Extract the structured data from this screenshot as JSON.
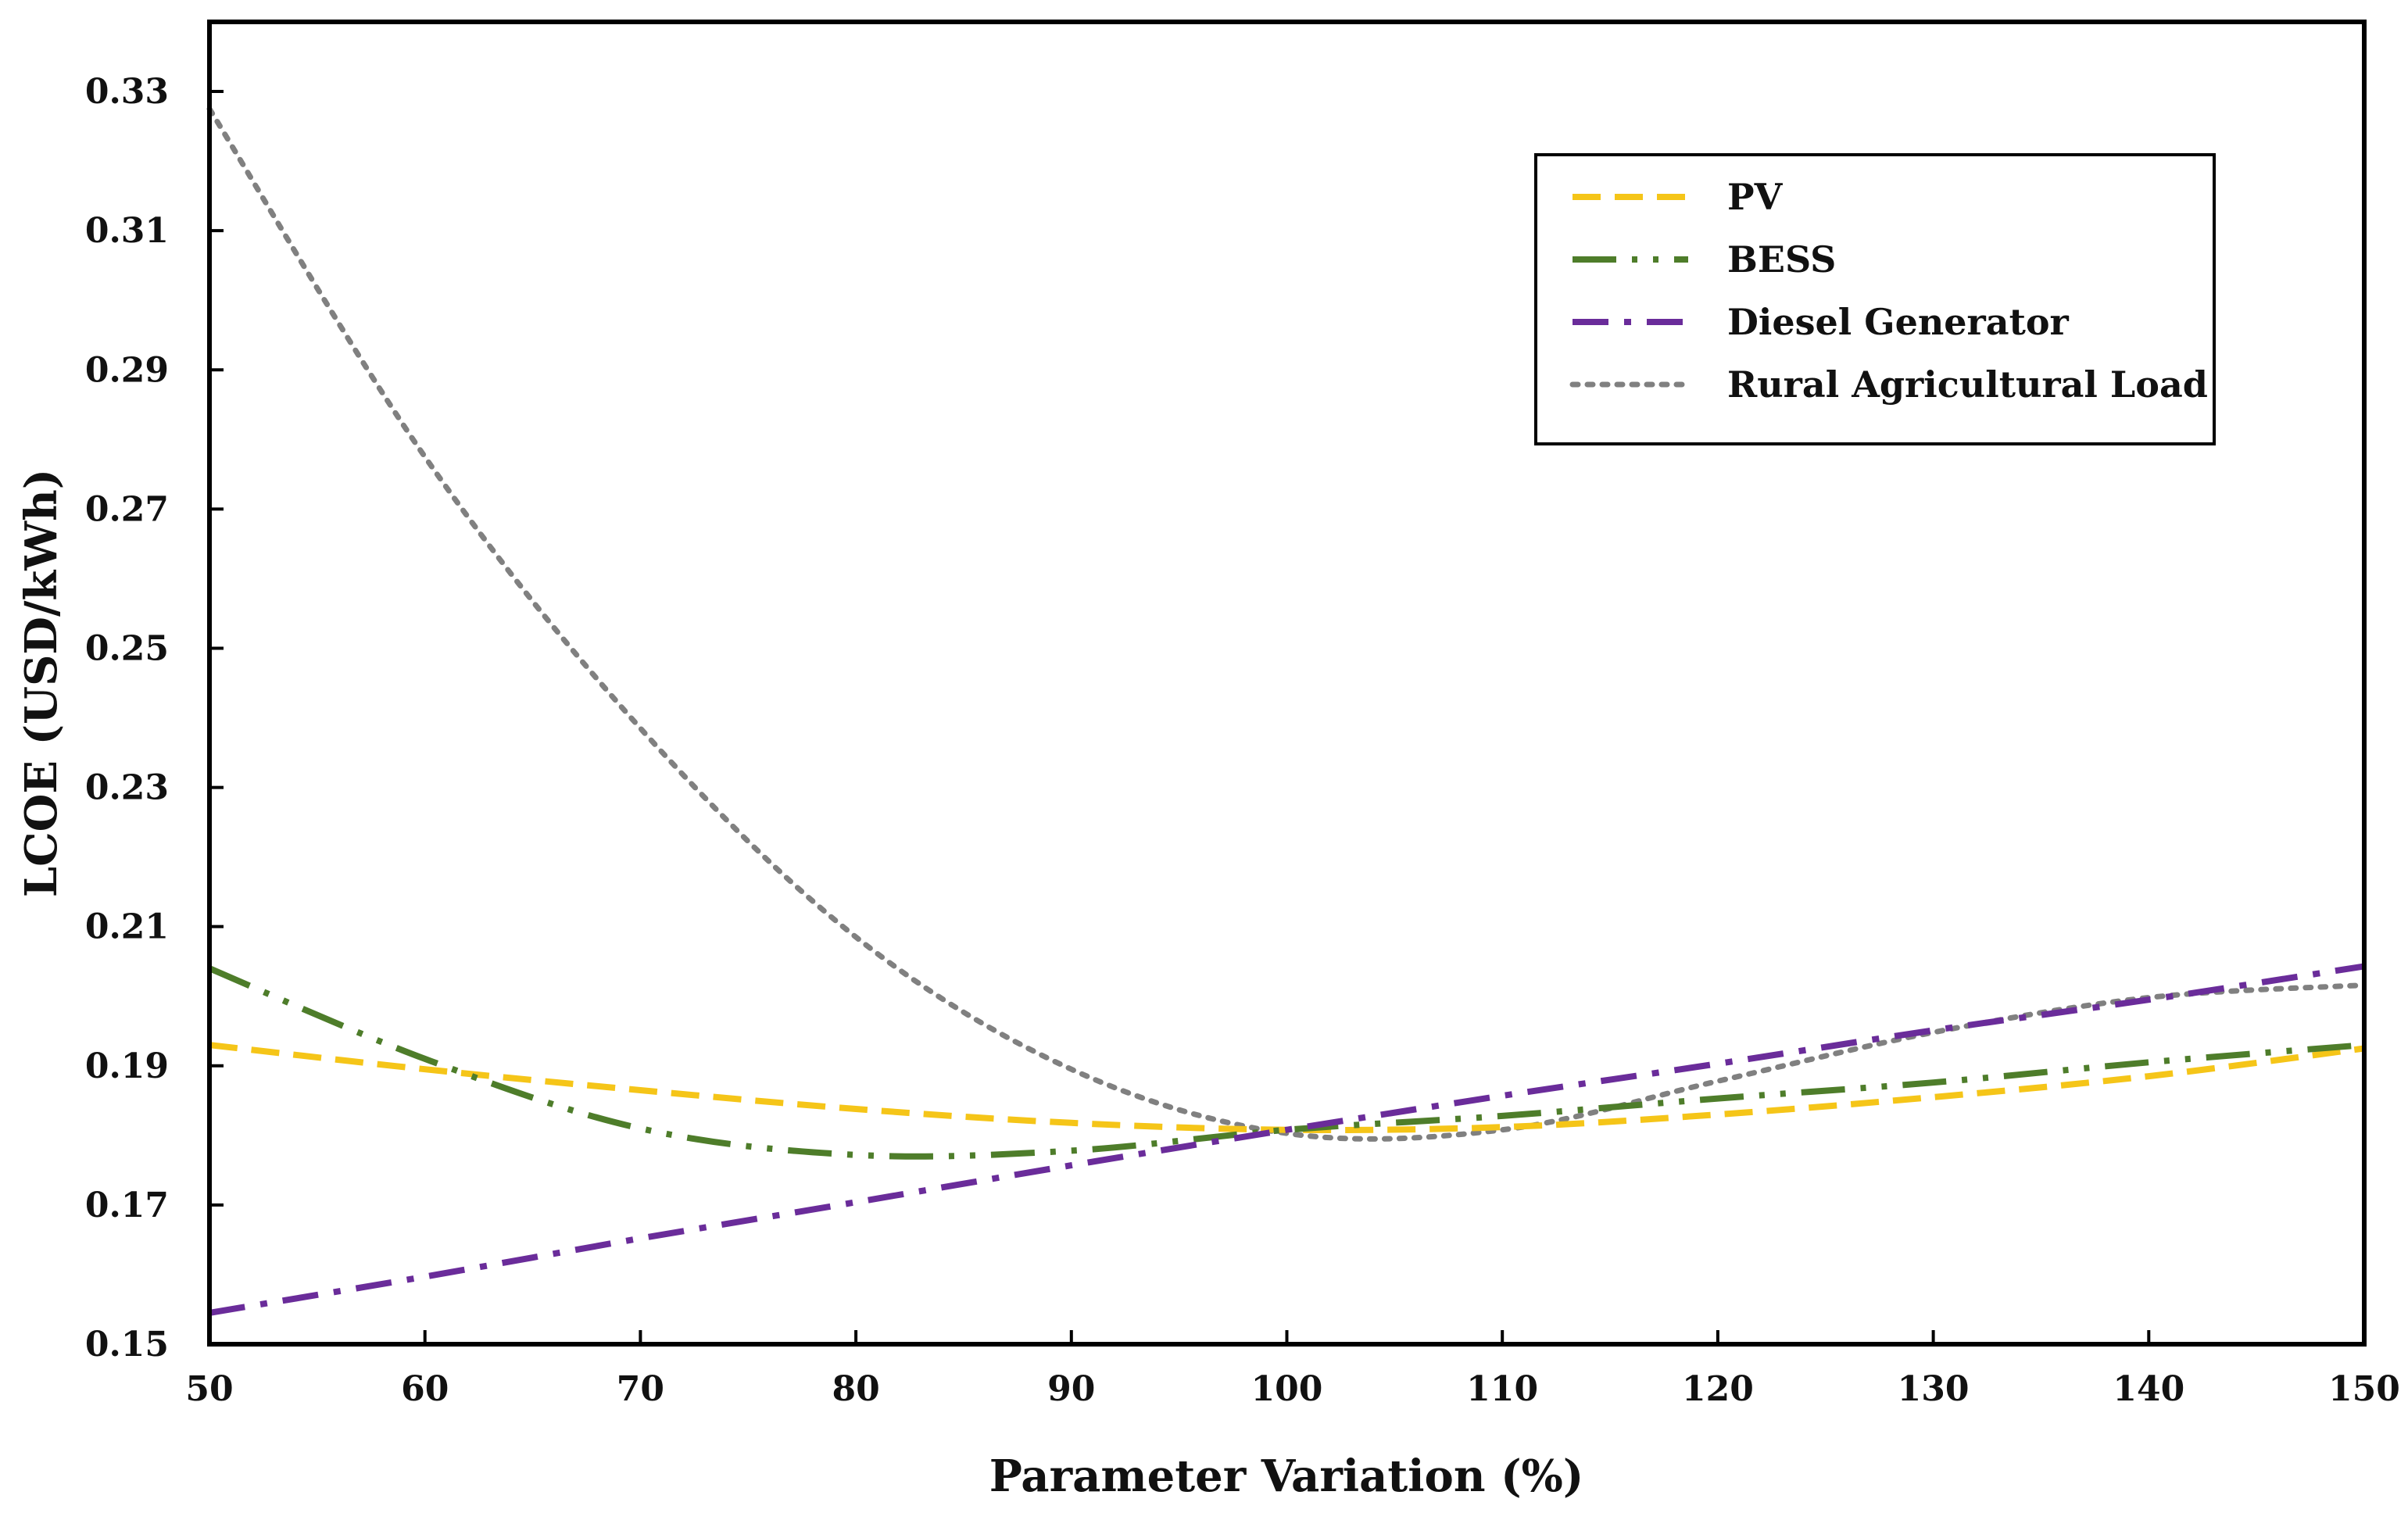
{
  "chart_data": {
    "type": "line",
    "title": "",
    "xlabel": "Parameter Variation (%)",
    "ylabel": "LCOE (USD/kWh)",
    "xlim": [
      50,
      150
    ],
    "ylim": [
      0.15,
      0.34
    ],
    "xticks": [
      50,
      60,
      70,
      80,
      90,
      100,
      110,
      120,
      130,
      140,
      150
    ],
    "yticks": [
      0.15,
      0.17,
      0.19,
      0.21,
      0.23,
      0.25,
      0.27,
      0.29,
      0.31,
      0.33
    ],
    "ytick_labels": [
      "0.15",
      "0.17",
      "0.19",
      "0.21",
      "0.23",
      "0.25",
      "0.27",
      "0.29",
      "0.31",
      "0.33"
    ],
    "grid": false,
    "legend_position": "top-right",
    "x": [
      50,
      60,
      70,
      80,
      90,
      100,
      110,
      120,
      130,
      140,
      150
    ],
    "series": [
      {
        "name": "PV",
        "color": "#F5C518",
        "dash": "dashed",
        "values": [
          0.193,
          0.1895,
          0.1865,
          0.1838,
          0.1818,
          0.1808,
          0.1812,
          0.183,
          0.1855,
          0.1885,
          0.1925
        ]
      },
      {
        "name": "BESS",
        "color": "#4E7D2A",
        "dash": "dash-dot-dot",
        "values": [
          0.204,
          0.191,
          0.181,
          0.1772,
          0.1778,
          0.1808,
          0.1828,
          0.1853,
          0.1876,
          0.1905,
          0.193
        ]
      },
      {
        "name": "Diesel Generator",
        "color": "#6A2C9A",
        "dash": "dash-dot",
        "values": [
          0.1545,
          0.1597,
          0.1652,
          0.1704,
          0.1757,
          0.1808,
          0.1857,
          0.1903,
          0.1951,
          0.1995,
          0.2043
        ]
      },
      {
        "name": "Rural Agricultural Load",
        "color": "#808080",
        "dash": "dotted",
        "values": [
          0.3275,
          0.2775,
          0.2385,
          0.2085,
          0.1895,
          0.1803,
          0.1808,
          0.1878,
          0.1948,
          0.1998,
          0.2016
        ]
      }
    ]
  }
}
